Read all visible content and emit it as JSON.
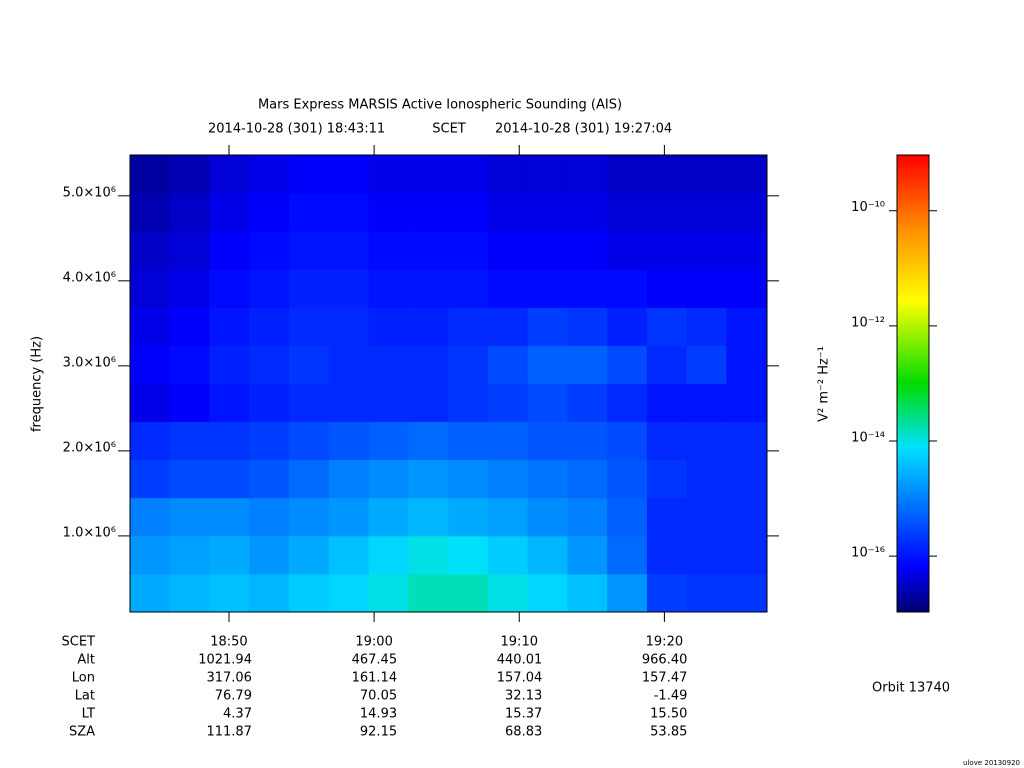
{
  "chart_data": {
    "type": "heatmap",
    "title": "Mars Express MARSIS Active Ionospheric Sounding (AIS)",
    "time_start": "2014-10-28 (301) 18:43:11",
    "time_system": "SCET",
    "time_end": "2014-10-28 (301) 19:27:04",
    "y_label": "frequency (Hz)",
    "xlim": [
      1123.18,
      1167.07
    ],
    "xticks": [
      {
        "value": 1130,
        "label": "18:50"
      },
      {
        "value": 1140,
        "label": "19:00"
      },
      {
        "value": 1150,
        "label": "19:10"
      },
      {
        "value": 1160,
        "label": "19:20"
      }
    ],
    "ylim": [
      105000,
      5480000
    ],
    "yticks": [
      {
        "value": 1000000,
        "label": "1.0×10⁶"
      },
      {
        "value": 2000000,
        "label": "2.0×10⁶"
      },
      {
        "value": 3000000,
        "label": "3.0×10⁶"
      },
      {
        "value": 4000000,
        "label": "4.0×10⁶"
      },
      {
        "value": 5000000,
        "label": "5.0×10⁶"
      }
    ],
    "x": [
      1124.55,
      1127.29,
      1130.03,
      1132.77,
      1135.51,
      1138.25,
      1140.99,
      1143.73,
      1146.47,
      1149.21,
      1151.95,
      1154.69,
      1157.43,
      1160.17,
      1162.91,
      1165.65
    ],
    "y": [
      329000,
      777000,
      1225000,
      1673000,
      2121000,
      2569000,
      3017000,
      3465000,
      3913000,
      4361000,
      4809000,
      5257000
    ],
    "z": [
      [
        2.5e-15,
        3.2e-15,
        4e-15,
        3.2e-15,
        5e-15,
        6.3e-15,
        1e-14,
        1.6e-14,
        1.6e-14,
        1e-14,
        6.3e-15,
        4e-15,
        1.6e-15,
        2.5e-16,
        2e-16,
        2e-16
      ],
      [
        1.6e-15,
        2e-15,
        2.5e-15,
        1.6e-15,
        2.5e-15,
        4e-15,
        6.3e-15,
        1e-14,
        8e-15,
        5e-15,
        3.2e-15,
        1.6e-15,
        6.3e-16,
        1.6e-16,
        1.6e-16,
        1.6e-16
      ],
      [
        1e-15,
        1.3e-15,
        1.3e-15,
        1e-15,
        1.3e-15,
        1.6e-15,
        2.5e-15,
        3.2e-15,
        2.5e-15,
        2e-15,
        1.3e-15,
        1e-15,
        5e-16,
        1.6e-16,
        1.6e-16,
        1.6e-16
      ],
      [
        2.5e-16,
        3.2e-16,
        3.2e-16,
        4e-16,
        6.3e-16,
        1e-15,
        1.3e-15,
        1.6e-15,
        1.3e-15,
        1e-15,
        8e-16,
        6.3e-16,
        4e-16,
        2e-16,
        1.6e-16,
        1.6e-16
      ],
      [
        1.6e-16,
        2e-16,
        2e-16,
        2.5e-16,
        3.2e-16,
        4e-16,
        5e-16,
        6.3e-16,
        5e-16,
        5e-16,
        4e-16,
        4e-16,
        3.2e-16,
        1.6e-16,
        1.6e-16,
        1.6e-16
      ],
      [
        5e-17,
        6.3e-17,
        1e-16,
        1.3e-16,
        1.6e-16,
        1.6e-16,
        1.6e-16,
        1.6e-16,
        2e-16,
        2.5e-16,
        3.2e-16,
        2.5e-16,
        1.6e-16,
        1e-16,
        1e-16,
        1e-16
      ],
      [
        6.3e-17,
        8e-17,
        1.3e-16,
        1.6e-16,
        2e-16,
        1.6e-16,
        1.6e-16,
        1.6e-16,
        2e-16,
        3.2e-16,
        5e-16,
        5e-16,
        3.2e-16,
        1.6e-16,
        2.5e-16,
        1e-16
      ],
      [
        5e-17,
        6.3e-17,
        1e-16,
        1.3e-16,
        1.6e-16,
        1.6e-16,
        1.3e-16,
        1.3e-16,
        1.6e-16,
        1.6e-16,
        2.5e-16,
        2e-16,
        1.3e-16,
        2e-16,
        1.6e-16,
        1e-16
      ],
      [
        4e-17,
        5e-17,
        8e-17,
        1e-16,
        1.3e-16,
        1.3e-16,
        1e-16,
        1e-16,
        1e-16,
        8e-17,
        8e-17,
        8e-17,
        8e-17,
        6.3e-17,
        6.3e-17,
        6.3e-17
      ],
      [
        3.2e-17,
        4e-17,
        6.3e-17,
        8e-17,
        1e-16,
        1e-16,
        8e-17,
        8e-17,
        8e-17,
        6.3e-17,
        6.3e-17,
        6.3e-17,
        5e-17,
        5e-17,
        5e-17,
        5e-17
      ],
      [
        2.5e-17,
        3.2e-17,
        5e-17,
        6.3e-17,
        8e-17,
        8e-17,
        6.3e-17,
        6.3e-17,
        6.3e-17,
        5e-17,
        5e-17,
        5e-17,
        4e-17,
        4e-17,
        4e-17,
        4e-17
      ],
      [
        2e-17,
        2.5e-17,
        4e-17,
        5e-17,
        6.3e-17,
        6.3e-17,
        5e-17,
        5e-17,
        5e-17,
        4e-17,
        4e-17,
        4e-17,
        3.2e-17,
        3.2e-17,
        3.2e-17,
        3.2e-17
      ]
    ],
    "colormap": "jet",
    "clim": [
      1.07e-17,
      9.3e-10
    ],
    "clog": true,
    "cticks": [
      {
        "value": 1e-10,
        "label": "10⁻¹⁰"
      },
      {
        "value": 1e-12,
        "label": "10⁻¹²"
      },
      {
        "value": 1e-14,
        "label": "10⁻¹⁴"
      },
      {
        "value": 1e-16,
        "label": "10⁻¹⁶"
      }
    ],
    "c_label": "V² m⁻² Hz⁻¹",
    "ephemeris_header": "SCET",
    "ephemeris": [
      {
        "label": "Alt",
        "values": [
          "1021.94",
          "467.45",
          "440.01",
          "966.40"
        ]
      },
      {
        "label": "Lon",
        "values": [
          "317.06",
          "161.14",
          "157.04",
          "157.47"
        ]
      },
      {
        "label": "Lat",
        "values": [
          "76.79",
          "70.05",
          "32.13",
          "-1.49"
        ]
      },
      {
        "label": "LT",
        "values": [
          "4.37",
          "14.93",
          "15.37",
          "15.50"
        ]
      },
      {
        "label": "SZA",
        "values": [
          "111.87",
          "92.15",
          "68.83",
          "53.85"
        ]
      }
    ],
    "orbit": "Orbit 13740",
    "footer": "ulove 20130920"
  }
}
